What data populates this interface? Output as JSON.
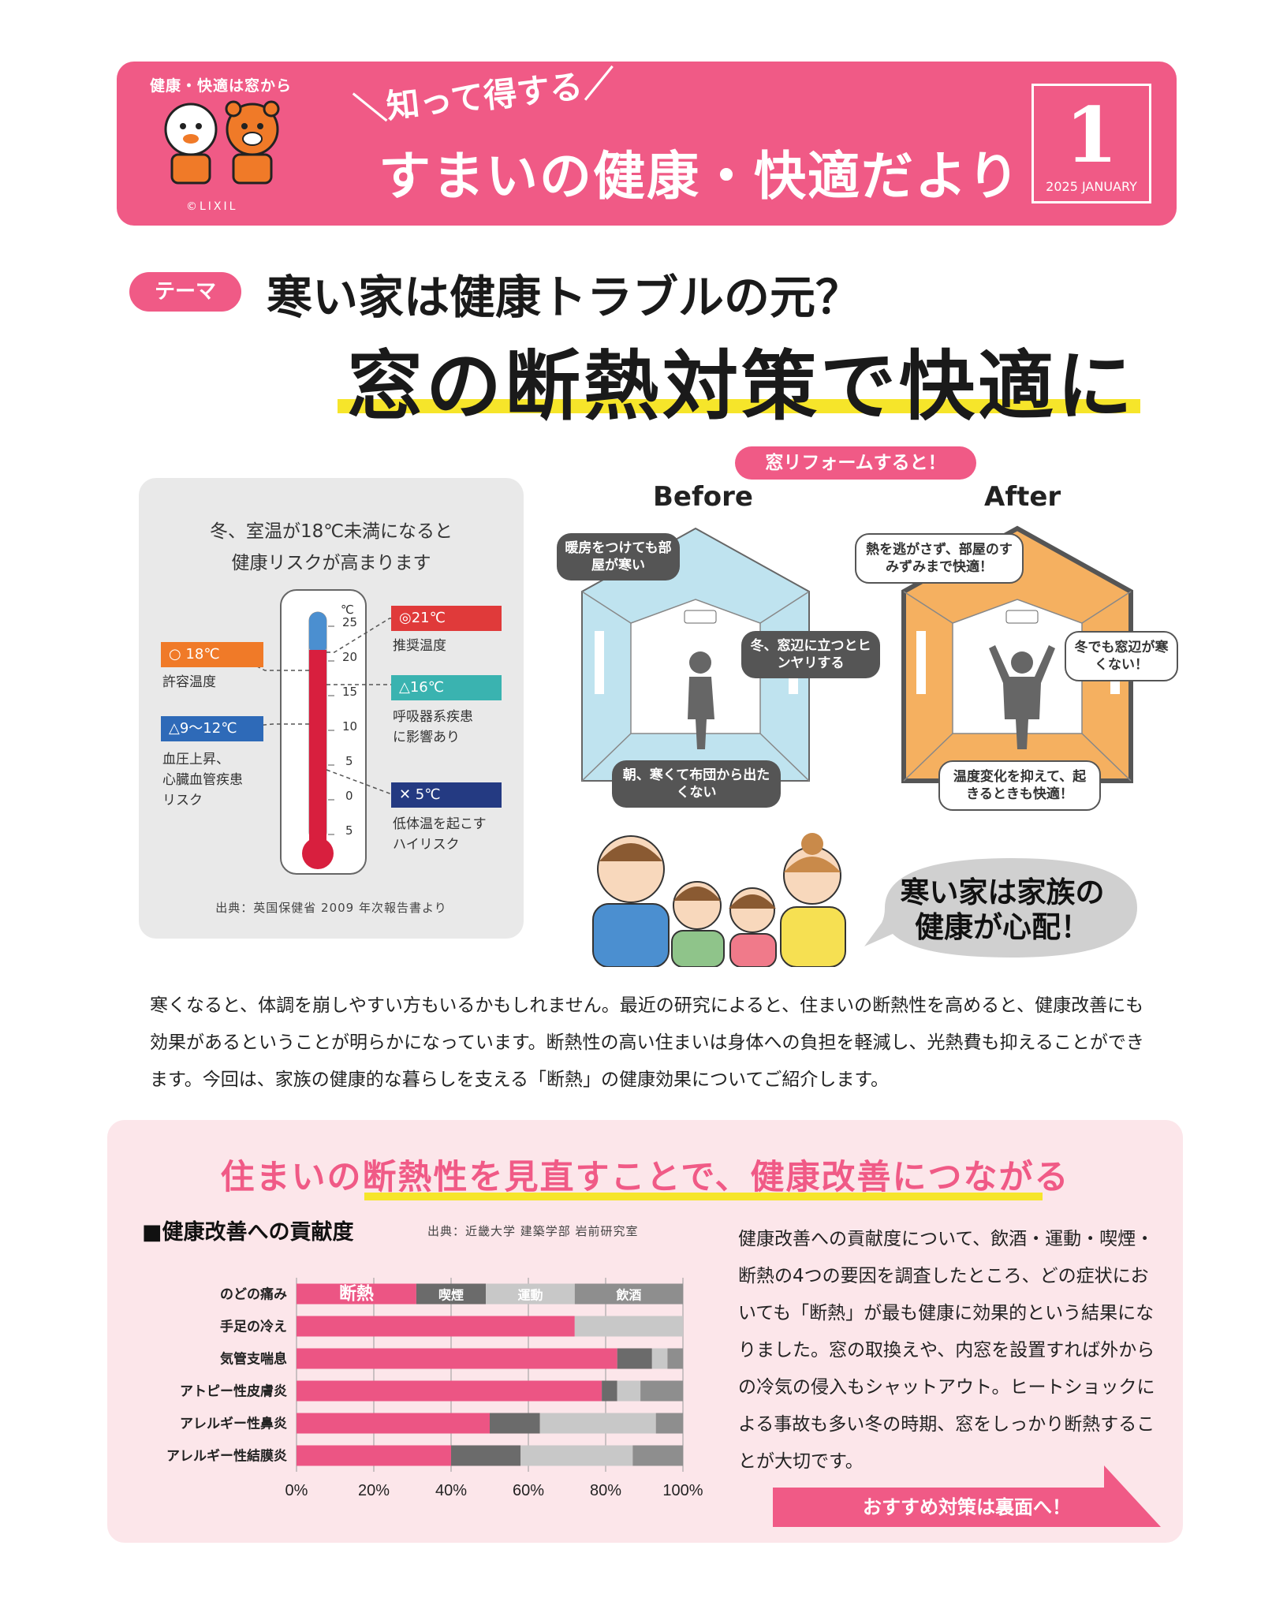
{
  "header": {
    "brand_tag": "健康・快適は窓から",
    "copyright": "©LIXIL",
    "subtitle": "知って得する",
    "title": "すまいの健康・快適だより",
    "issue_number": "1",
    "issue_date": "2025 JANUARY",
    "color": "#f05a86"
  },
  "theme": {
    "badge": "テーマ",
    "line1": "寒い家は健康トラブルの元？",
    "line2": "窓の断熱対策で快適に"
  },
  "thermometer": {
    "caption_line1": "冬、室温が18℃未満になると",
    "caption_line2": "健康リスクが高まります",
    "unit": "℃",
    "ticks": [
      "25",
      "20",
      "15",
      "10",
      "5",
      "0",
      "5"
    ],
    "labels": [
      {
        "text": "◎21℃",
        "desc1": "推奨温度",
        "desc2": "",
        "desc3": "",
        "color": "#e03a3a"
      },
      {
        "text": "○ 18℃",
        "desc1": "許容温度",
        "desc2": "",
        "desc3": "",
        "color": "#f07a28"
      },
      {
        "text": "△16℃",
        "desc1": "呼吸器系疾患",
        "desc2": "に影響あり",
        "desc3": "",
        "color": "#3ab3b0"
      },
      {
        "text": "△9〜12℃",
        "desc1": "血圧上昇、",
        "desc2": "心臓血管疾患",
        "desc3": "リスク",
        "color": "#2e6ab8"
      },
      {
        "text": "✕ 5℃",
        "desc1": "低体温を起こす",
        "desc2": "ハイリスク",
        "desc3": "",
        "color": "#243a82"
      }
    ],
    "source": "出典：英国保健省 2009 年次報告書より"
  },
  "reform": {
    "badge": "窓リフォームすると！",
    "before_label": "Before",
    "after_label": "After",
    "before_bubbles": [
      "暖房をつけても部屋が寒い",
      "冬、窓辺に立つとヒンヤリする",
      "朝、寒くて布団から出たくない"
    ],
    "after_bubbles": [
      "熱を逃がさず、部屋のすみずみまで快適！",
      "冬でも窓辺が寒くない！",
      "温度変化を抑えて、起きるときも快適！"
    ],
    "family_line1": "寒い家は家族の",
    "family_line2": "健康が心配！",
    "before_color": "#bfe3ef",
    "after_color": "#f5b060"
  },
  "intro": "寒くなると、体調を崩しやすい方もいるかもしれません。最近の研究によると、住まいの断熱性を高めると、健康改善にも効果があるということが明らかになっています。断熱性の高い住まいは身体への負担を軽減し、光熱費も抑えることができます。今回は、家族の健康的な暮らしを支える「断熱」の健康効果についてご紹介します。",
  "panel": {
    "title": "住まいの断熱性を見直すことで、健康改善につながる",
    "chart_heading": "■健康改善への貢献度",
    "chart_source": "出典：近畿大学 建築学部 岩前研究室",
    "text": "健康改善への貢献度について、飲酒・運動・喫煙・断熱の4つの要因を調査したところ、どの症状においても「断熱」が最も健康に効果的という結果になりました。窓の取換えや、内窓を設置すれば外からの冷気の侵入もシャットアウト。ヒートショックによる事故も多い冬の時期、窓をしっかり断熱することが大切です。",
    "recommend": "おすすめ対策は裏面へ！"
  },
  "chart_data": {
    "type": "bar",
    "orientation": "horizontal-stacked",
    "categories": [
      "のどの痛み",
      "手足の冷え",
      "気管支喘息",
      "アトピー性皮膚炎",
      "アレルギー性鼻炎",
      "アレルギー性結膜炎"
    ],
    "series": [
      {
        "name": "断熱",
        "values": [
          31,
          72,
          83,
          79,
          50,
          40
        ],
        "color": "#ec5584"
      },
      {
        "name": "喫煙",
        "values": [
          18,
          0,
          9,
          4,
          13,
          18
        ],
        "color": "#6b6b6b"
      },
      {
        "name": "運動",
        "values": [
          23,
          28,
          4,
          6,
          30,
          29
        ],
        "color": "#c8c8c8"
      },
      {
        "name": "飲酒",
        "values": [
          28,
          0,
          4,
          11,
          7,
          13
        ],
        "color": "#8e8e8e"
      }
    ],
    "xticks": [
      "0%",
      "20%",
      "40%",
      "60%",
      "80%",
      "100%"
    ],
    "xlim": [
      0,
      100
    ]
  }
}
